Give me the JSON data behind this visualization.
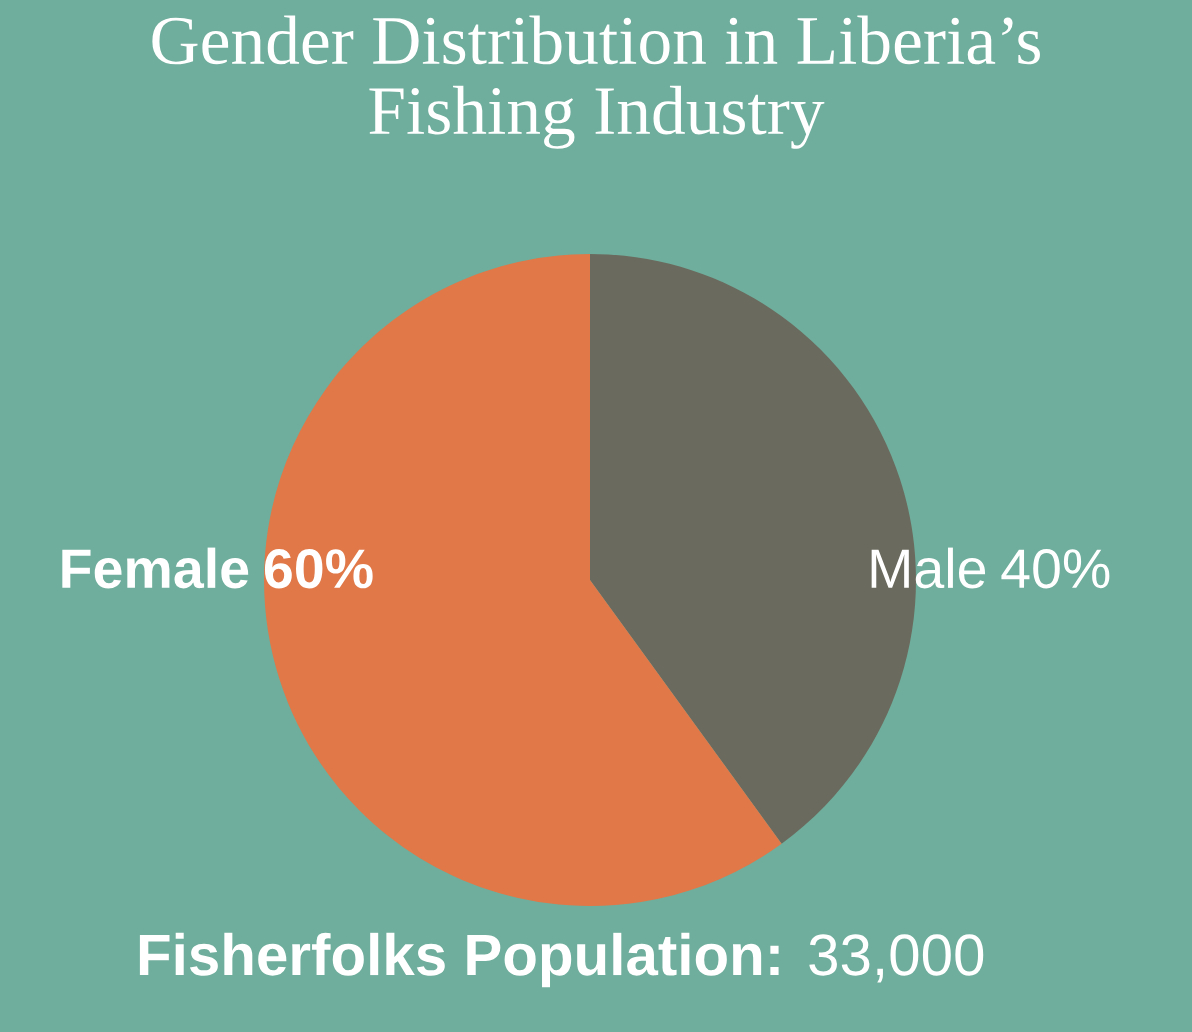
{
  "chart_data": {
    "type": "pie",
    "title": "Gender Distribution in Liberia’s\nFishing Industry",
    "categories": [
      "Male",
      "Female"
    ],
    "values": [
      40,
      60
    ],
    "value_labels": [
      "40%",
      "60%"
    ],
    "colors": [
      "#6b6a5e",
      "#e07848"
    ],
    "annotations": [
      "Fisherfolks Population:",
      "33,000"
    ]
  }
}
